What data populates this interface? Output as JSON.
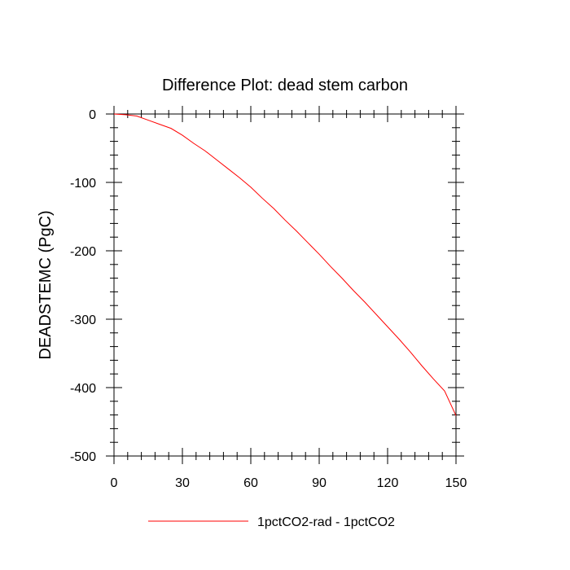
{
  "chart_data": {
    "type": "line",
    "title": "Difference Plot: dead stem carbon",
    "xlabel": "",
    "ylabel": "DEADSTEMC  (PgC)",
    "xlim": [
      0,
      150
    ],
    "ylim": [
      -500,
      0
    ],
    "xticks": [
      0,
      30,
      60,
      90,
      120,
      150
    ],
    "xtick_labels": [
      "0",
      "30",
      "60",
      "90",
      "120",
      "150"
    ],
    "yticks": [
      0,
      -100,
      -200,
      -300,
      -400,
      -500
    ],
    "ytick_labels": [
      "0",
      "-100",
      "-200",
      "-300",
      "-400",
      "-500"
    ],
    "grid": false,
    "legend_position": "bottom",
    "series": [
      {
        "name": "1pctCO2-rad - 1pctCO2",
        "color": "#ff0000",
        "x": [
          0,
          5,
          10,
          15,
          20,
          25,
          30,
          35,
          40,
          45,
          50,
          55,
          60,
          65,
          70,
          75,
          80,
          85,
          90,
          95,
          100,
          105,
          110,
          115,
          120,
          125,
          130,
          135,
          140,
          145,
          150
        ],
        "y": [
          0,
          -1,
          -3,
          -9,
          -15,
          -21,
          -31,
          -43,
          -54,
          -67,
          -80,
          -93,
          -107,
          -123,
          -138,
          -155,
          -171,
          -188,
          -205,
          -223,
          -240,
          -258,
          -275,
          -293,
          -311,
          -329,
          -348,
          -368,
          -387,
          -405,
          -441
        ]
      }
    ]
  }
}
